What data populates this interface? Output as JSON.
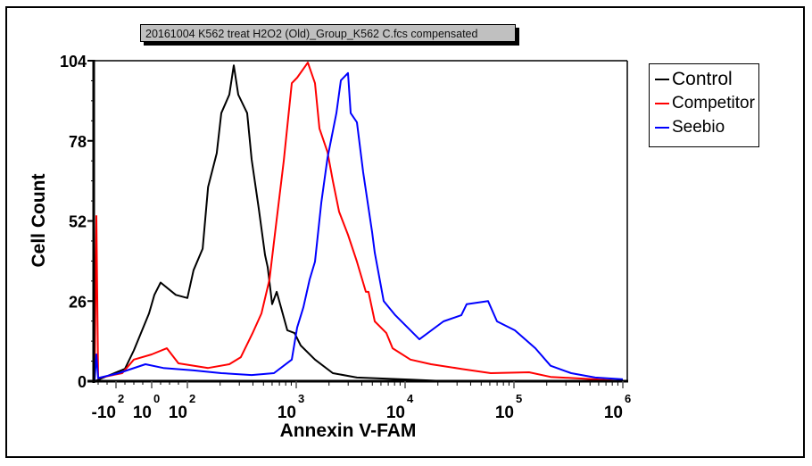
{
  "title": "20161004 K562 treat H2O2 (Old)_Group_K562 C.fcs compensated",
  "chart_data": {
    "type": "line",
    "title": "20161004 K562 treat H2O2 (Old)_Group_K562 C.fcs compensated",
    "xlabel": "Annexin V-FAM",
    "ylabel": "Cell Count",
    "xscale": "logicle",
    "xlim": [
      -160,
      1000000
    ],
    "ylim": [
      0,
      104
    ],
    "grid": false,
    "legend_position": "right",
    "yticks": [
      0,
      26,
      52,
      78,
      104
    ],
    "xticks": [
      {
        "value": -100,
        "base": "-10",
        "exp": "2"
      },
      {
        "value": 0,
        "base": "10",
        "exp": "0"
      },
      {
        "value": 100,
        "base": "10",
        "exp": "2"
      },
      {
        "value": 1000,
        "base": "10",
        "exp": "3"
      },
      {
        "value": 10000,
        "base": "10",
        "exp": "4"
      },
      {
        "value": 100000,
        "base": "10",
        "exp": "5"
      },
      {
        "value": 1000000,
        "base": "10",
        "exp": "6"
      }
    ],
    "series": [
      {
        "name": "Control",
        "color": "#000000",
        "x": [
          -160,
          -75,
          -50,
          -7.5,
          7.5,
          25,
          67.5,
          100,
          114,
          138,
          155,
          186,
          205,
          243,
          267,
          293,
          354,
          389,
          453,
          517,
          547,
          601,
          661,
          828,
          964,
          1099,
          1486,
          2168,
          3606,
          11190,
          23820
        ],
        "y": [
          0,
          4,
          10,
          22,
          28,
          32,
          28,
          27,
          36,
          43,
          63,
          74,
          87,
          93,
          102.5,
          93,
          87,
          72,
          56,
          41,
          37,
          25,
          29,
          16.5,
          15.6,
          11.6,
          7,
          2.6,
          1.2,
          0.5,
          0
        ]
      },
      {
        "name": "Competitor",
        "color": "#ff0000",
        "x": [
          -160,
          -155,
          -150,
          -82.5,
          -50,
          0,
          42.5,
          75,
          155,
          243,
          310,
          397,
          479,
          568,
          636,
          768,
          910,
          1019,
          1279,
          1486,
          1633,
          1936,
          2168,
          2472,
          2986,
          3606,
          4357,
          4613,
          5260,
          6727,
          7674,
          11190,
          17290,
          32810,
          61240,
          137700,
          216800,
          557200,
          1000000
        ],
        "y": [
          0,
          53.6,
          1,
          2.6,
          7,
          8.7,
          10.7,
          5.8,
          4.3,
          5.5,
          7.8,
          15.6,
          22,
          33,
          47.5,
          71.5,
          96.7,
          98.5,
          103.4,
          96.7,
          82,
          74.4,
          65,
          55,
          47.5,
          38.8,
          29,
          29,
          19.4,
          15.6,
          10.7,
          7,
          5.5,
          4,
          2.6,
          2.9,
          1.4,
          0.6,
          0
        ]
      },
      {
        "name": "Seebio",
        "color": "#0000ff",
        "x": [
          -160,
          -155,
          -150,
          -92.5,
          -17.5,
          32.5,
          114,
          205,
          389,
          624,
          910,
          1019,
          1164,
          1327,
          1486,
          1698,
          1936,
          2338,
          2570,
          2986,
          3162,
          3606,
          4117,
          4974,
          5260,
          6353,
          8128,
          13520,
          22500,
          32810,
          36790,
          57810,
          69820,
          101900,
          157400,
          216800,
          335000,
          557200,
          1000000
        ],
        "y": [
          0,
          8.7,
          1,
          2.6,
          5.5,
          4.3,
          3.5,
          2.6,
          2,
          2.6,
          7,
          17.4,
          24,
          33,
          38.8,
          58,
          72.4,
          87,
          97.6,
          100,
          87,
          84,
          67.8,
          48.4,
          41.7,
          26,
          21.4,
          13.6,
          19.4,
          21.4,
          25,
          26,
          19.4,
          16.5,
          10.7,
          5,
          2.6,
          1.2,
          0.6
        ]
      }
    ]
  }
}
